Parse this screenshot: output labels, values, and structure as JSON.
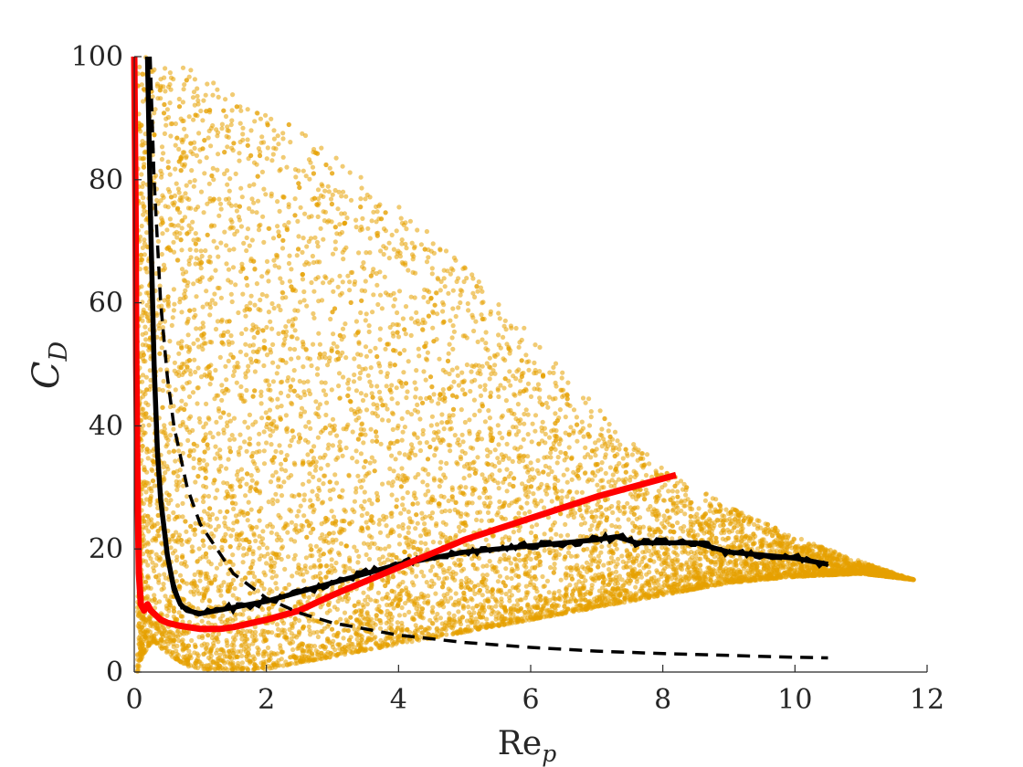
{
  "chart_data": {
    "type": "scatter",
    "title": "",
    "xlabel": "Re",
    "xlabel_sub": "p",
    "ylabel": "C",
    "ylabel_sub": "D",
    "xlim": [
      0,
      12
    ],
    "ylim": [
      0,
      100
    ],
    "xticks": [
      0,
      2,
      4,
      6,
      8,
      10,
      12
    ],
    "yticks": [
      0,
      20,
      40,
      60,
      80,
      100
    ],
    "grid": false,
    "legend": "none",
    "scatter_color": "#E6A000",
    "scatter_envelope": {
      "x": [
        0.05,
        0.1,
        0.2,
        0.3,
        0.5,
        0.8,
        1.0,
        1.5,
        2.0,
        2.5,
        3.0,
        4.0,
        5.0,
        6.0,
        7.0,
        8.0,
        9.0,
        10.0,
        11.0,
        11.8
      ],
      "upper": [
        100,
        100,
        100,
        100,
        100,
        99,
        97,
        94,
        91,
        88,
        84,
        76,
        66,
        55,
        43,
        33,
        27,
        22,
        18,
        15
      ],
      "lower": [
        0,
        2,
        4,
        5,
        3,
        1,
        0.5,
        0.3,
        0.5,
        1.5,
        2.5,
        4.5,
        6.5,
        8.5,
        10.5,
        12.5,
        14.5,
        15.5,
        16,
        15
      ]
    },
    "series": [
      {
        "type": "line",
        "style": "solid-noisy",
        "color": "#000000",
        "x": [
          0.2,
          0.25,
          0.3,
          0.35,
          0.4,
          0.5,
          0.6,
          0.7,
          0.8,
          1.0,
          1.5,
          2.0,
          2.5,
          3.0,
          3.5,
          4.0,
          4.5,
          5.0,
          5.5,
          6.0,
          6.5,
          7.0,
          7.3,
          7.6,
          8.0,
          8.5,
          9.0,
          9.5,
          10.0,
          10.5
        ],
        "y": [
          100,
          72,
          50,
          36,
          28,
          19,
          13.5,
          11,
          10,
          9.5,
          10.5,
          11.5,
          13,
          14.5,
          16,
          17.5,
          18.5,
          19.5,
          20,
          20.5,
          21,
          21.5,
          22,
          21,
          21,
          21,
          19.5,
          19,
          18.5,
          17.5
        ]
      },
      {
        "type": "line",
        "style": "solid-thick",
        "color": "#FF0000",
        "x": [
          0.0,
          0.02,
          0.03,
          0.05,
          0.07,
          0.1,
          0.15,
          0.2,
          0.25,
          0.3,
          0.4,
          0.5,
          0.7,
          1.0,
          1.3,
          1.5,
          2.0,
          2.5,
          3.0,
          4.0,
          5.0,
          6.0,
          7.0,
          8.2
        ],
        "y": [
          100,
          75,
          50,
          30,
          16,
          11,
          10,
          11,
          10,
          9.5,
          8.5,
          8,
          7.5,
          7,
          7,
          7.3,
          8.5,
          10,
          12.5,
          17,
          21.5,
          25,
          28.5,
          32
        ]
      },
      {
        "type": "line",
        "style": "dashed",
        "color": "#000000",
        "x": [
          0.24,
          0.3,
          0.4,
          0.5,
          0.6,
          0.8,
          1.0,
          1.5,
          2.0,
          2.5,
          3.0,
          4.0,
          5.0,
          6.0,
          7.0,
          8.0,
          9.0,
          10.0,
          10.5
        ],
        "y": [
          100,
          80,
          60,
          48,
          40,
          30,
          24,
          16,
          12,
          9.6,
          8,
          6,
          4.8,
          4,
          3.4,
          3,
          2.7,
          2.4,
          2.3
        ]
      }
    ]
  }
}
